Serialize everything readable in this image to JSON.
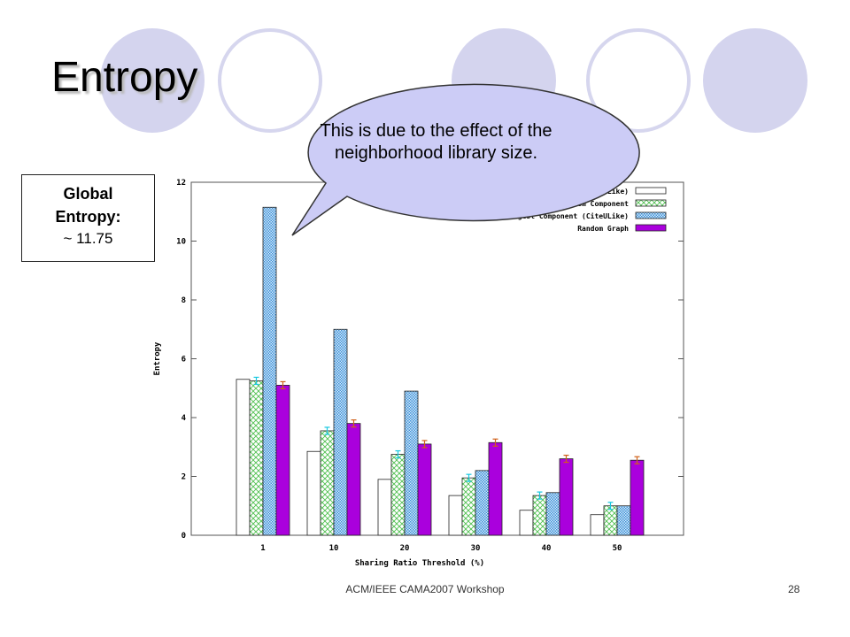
{
  "slide": {
    "title": "Entropy",
    "footer": "ACM/IEEE CAMA2007 Workshop",
    "page_number": "28"
  },
  "colors": {
    "decor_fill": "#d4d4ee",
    "decor_ring": "#d6d6ee",
    "callout_fill": "#ccccf6",
    "bar_random_graph": "#aa00dd",
    "bar_largest_component": "#7fb3e6",
    "bar_random_component": "#8fdc8f",
    "bar_entropy": "#ffffff",
    "err_cyan": "#18c8e0",
    "err_orange": "#d06018"
  },
  "global_box": {
    "line1": "Global",
    "line2": "Entropy:",
    "line3": "~ 11.75"
  },
  "callout": {
    "text": "This is due to the effect of the neighborhood library size."
  },
  "chart_data": {
    "type": "bar",
    "categories": [
      "1",
      "10",
      "20",
      "30",
      "40",
      "50"
    ],
    "xlabel": "Sharing Ratio Threshold (%)",
    "ylabel": "Entropy",
    "ylim": [
      0,
      12
    ],
    "yticks": [
      "0",
      "2",
      "4",
      "6",
      "8",
      "10",
      "12"
    ],
    "legend_position": "top-right",
    "series": [
      {
        "name": "Entropy (CiteULike)",
        "values": [
          5.3,
          2.85,
          1.9,
          1.35,
          0.85,
          0.7
        ]
      },
      {
        "name": "Random Component",
        "values": [
          5.25,
          3.55,
          2.75,
          1.95,
          1.35,
          1.0
        ]
      },
      {
        "name": "Largest Component (CiteULike)",
        "values": [
          11.15,
          7.0,
          4.9,
          2.2,
          1.45,
          1.0
        ]
      },
      {
        "name": "Random Graph",
        "values": [
          5.1,
          3.8,
          3.1,
          3.15,
          2.6,
          2.55
        ]
      }
    ]
  }
}
